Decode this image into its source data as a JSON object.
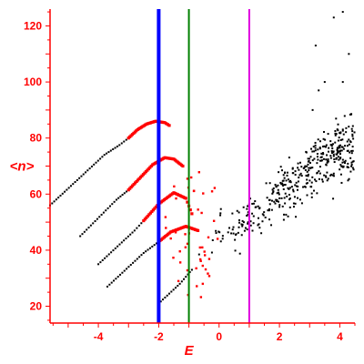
{
  "chart_data": {
    "type": "scatter",
    "title": "",
    "xlabel": "E",
    "ylabel": "<n>",
    "xlim": [
      -5.6,
      4.5
    ],
    "ylim": [
      14,
      126
    ],
    "xticks": [
      -4,
      -2,
      0,
      2,
      4
    ],
    "yticks": [
      20,
      40,
      60,
      80,
      100,
      120
    ],
    "grid": false,
    "legend": "none",
    "colors": {
      "axes": "#ff0000",
      "upper_branch": "#ff0000",
      "lower_branch": "#000000",
      "scatter_points": "#000000",
      "vline_blue": "#0000ff",
      "vline_green": "#008000",
      "vline_magenta": "#e000e0"
    },
    "vertical_lines": [
      {
        "x": -2.0,
        "color": "#0000ff",
        "width": "thick"
      },
      {
        "x": -1.0,
        "color": "#008000",
        "width": "thin"
      },
      {
        "x": 1.0,
        "color": "#e000e0",
        "width": "thin"
      }
    ],
    "curves": [
      {
        "lower": [
          [
            -5.6,
            56.0
          ],
          [
            -3.8,
            74.0
          ],
          [
            -3.3,
            77.5
          ],
          [
            -3.0,
            80.0
          ]
        ],
        "upper": [
          [
            -3.0,
            80.0
          ],
          [
            -2.7,
            83.0
          ],
          [
            -2.4,
            85.0
          ],
          [
            -2.1,
            86.0
          ],
          [
            -1.8,
            85.5
          ],
          [
            -1.65,
            84.5
          ]
        ]
      },
      {
        "lower": [
          [
            -4.6,
            45.0
          ],
          [
            -3.4,
            58.0
          ],
          [
            -3.0,
            61.5
          ]
        ],
        "upper": [
          [
            -3.0,
            61.5
          ],
          [
            -2.6,
            66.0
          ],
          [
            -2.2,
            70.5
          ],
          [
            -1.8,
            73.0
          ],
          [
            -1.5,
            72.5
          ],
          [
            -1.2,
            70.0
          ]
        ]
      },
      {
        "lower": [
          [
            -4.0,
            35.0
          ],
          [
            -2.8,
            47.0
          ],
          [
            -2.5,
            50.5
          ]
        ],
        "upper": [
          [
            -2.5,
            50.5
          ],
          [
            -2.0,
            56.5
          ],
          [
            -1.5,
            60.5
          ],
          [
            -1.1,
            58.5
          ],
          [
            -0.9,
            53.0
          ]
        ]
      },
      {
        "lower": [
          [
            -3.7,
            27.0
          ],
          [
            -2.5,
            39.0
          ],
          [
            -2.0,
            43.0
          ]
        ],
        "upper": [
          [
            -2.0,
            43.0
          ],
          [
            -1.6,
            46.5
          ],
          [
            -1.1,
            48.5
          ],
          [
            -0.7,
            47.0
          ]
        ]
      },
      {
        "lower": [
          [
            -2.0,
            21.0
          ],
          [
            -1.3,
            28.0
          ],
          [
            -0.9,
            33.0
          ]
        ],
        "upper": []
      }
    ],
    "scatter_cloud": {
      "x_range": [
        -0.8,
        4.5
      ],
      "trend": [
        [
          -0.8,
          43
        ],
        [
          0,
          46
        ],
        [
          1,
          50
        ],
        [
          2,
          60
        ],
        [
          3,
          68
        ],
        [
          4,
          76
        ]
      ],
      "spread_low_x": 6,
      "spread_high_x": 11,
      "count": 420,
      "upper_outliers": [
        [
          3.3,
          97
        ],
        [
          3.5,
          100
        ],
        [
          3.1,
          90
        ],
        [
          4.1,
          100
        ],
        [
          4.3,
          110
        ],
        [
          3.8,
          123
        ],
        [
          4.1,
          125
        ],
        [
          3.2,
          113
        ]
      ]
    },
    "red_scatter": {
      "x_range": [
        -1.8,
        0.0
      ],
      "y_range": [
        23,
        68
      ],
      "count": 45
    }
  }
}
